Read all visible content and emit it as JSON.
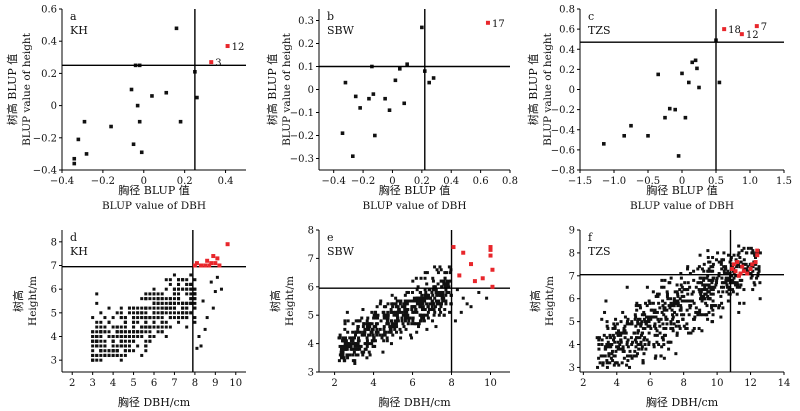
{
  "chart_data": [
    {
      "id": "a",
      "type": "scatter",
      "letter": "a",
      "site": "KH",
      "xlabel_cn": "胸径 BLUP 值",
      "xlabel_en": "BLUP value of DBH",
      "ylabel_cn": "树高 BLUP 值",
      "ylabel_en": "BLUP value of height",
      "xlim": [
        -0.4,
        0.5
      ],
      "ylim": [
        -0.4,
        0.6
      ],
      "xticks": [
        -0.4,
        -0.2,
        0,
        0.2,
        0.4
      ],
      "xtick_labels": [
        "−0.4",
        "−0.2",
        "0",
        "0.2",
        "0.4"
      ],
      "yticks": [
        -0.4,
        -0.2,
        0,
        0.2,
        0.4,
        0.6
      ],
      "ytick_labels": [
        "−0.4",
        "−0.2",
        "0",
        "0.2",
        "0.4",
        "0.6"
      ],
      "vline": 0.25,
      "hline": 0.25,
      "points": [
        [
          -0.34,
          -0.33
        ],
        [
          -0.34,
          -0.36
        ],
        [
          -0.32,
          -0.21
        ],
        [
          -0.29,
          -0.1
        ],
        [
          -0.28,
          -0.3
        ],
        [
          -0.16,
          -0.13
        ],
        [
          -0.06,
          0.1
        ],
        [
          -0.05,
          -0.24
        ],
        [
          -0.04,
          0.25
        ],
        [
          -0.03,
          0.0
        ],
        [
          -0.02,
          0.25
        ],
        [
          -0.02,
          -0.1
        ],
        [
          -0.01,
          -0.29
        ],
        [
          0.04,
          0.06
        ],
        [
          0.11,
          0.08
        ],
        [
          0.16,
          0.48
        ],
        [
          0.18,
          -0.1
        ],
        [
          0.25,
          0.21
        ],
        [
          0.26,
          0.05
        ]
      ],
      "highlighted": [
        [
          0.33,
          0.27
        ],
        [
          0.41,
          0.37
        ]
      ],
      "highlight_labels": [
        "3",
        "12"
      ]
    },
    {
      "id": "b",
      "type": "scatter",
      "letter": "b",
      "site": "SBW",
      "xlabel_cn": "胸径 BLUP 值",
      "xlabel_en": "BLUP value of DBH",
      "ylabel_cn": "树高 BLUP 值",
      "ylabel_en": "BLUP value of height",
      "xlim": [
        -0.5,
        0.8
      ],
      "ylim": [
        -0.35,
        0.35
      ],
      "xticks": [
        -0.4,
        -0.2,
        0,
        0.2,
        0.4,
        0.6,
        0.8
      ],
      "xtick_labels": [
        "−0.4",
        "−0.2",
        "0",
        "0.2",
        "0.4",
        "0.6",
        "0.8"
      ],
      "yticks": [
        -0.3,
        -0.2,
        -0.1,
        0,
        0.1,
        0.2,
        0.3
      ],
      "ytick_labels": [
        "−0.3",
        "−0.2",
        "−0.1",
        "0",
        "0.1",
        "0.2",
        "0.3"
      ],
      "vline": 0.22,
      "hline": 0.1,
      "points": [
        [
          -0.34,
          -0.19
        ],
        [
          -0.32,
          0.03
        ],
        [
          -0.27,
          -0.29
        ],
        [
          -0.25,
          -0.03
        ],
        [
          -0.22,
          -0.08
        ],
        [
          -0.16,
          -0.04
        ],
        [
          -0.14,
          0.1
        ],
        [
          -0.13,
          -0.02
        ],
        [
          -0.12,
          -0.2
        ],
        [
          -0.05,
          -0.04
        ],
        [
          -0.02,
          -0.09
        ],
        [
          0.02,
          0.04
        ],
        [
          0.05,
          0.09
        ],
        [
          0.08,
          -0.06
        ],
        [
          0.1,
          0.11
        ],
        [
          0.2,
          0.27
        ],
        [
          0.22,
          0.08
        ],
        [
          0.25,
          0.03
        ],
        [
          0.28,
          0.05
        ]
      ],
      "highlighted": [
        [
          0.65,
          0.29
        ]
      ],
      "highlight_labels": [
        "17"
      ]
    },
    {
      "id": "c",
      "type": "scatter",
      "letter": "c",
      "site": "TZS",
      "xlabel_cn": "胸径 BLUP 值",
      "xlabel_en": "BLUP value of DBH",
      "ylabel_cn": "树高 BLUP 值",
      "ylabel_en": "BLUP value of height",
      "xlim": [
        -1.5,
        1.5
      ],
      "ylim": [
        -0.8,
        0.8
      ],
      "xticks": [
        -1.5,
        -1.0,
        -0.5,
        0,
        0.5,
        1.0,
        1.5
      ],
      "xtick_labels": [
        "−1.5",
        "−1.0",
        "−0.5",
        "0",
        "0.5",
        "1.0",
        "1.5"
      ],
      "yticks": [
        -0.8,
        -0.6,
        -0.4,
        -0.2,
        0,
        0.2,
        0.4,
        0.6,
        0.8
      ],
      "ytick_labels": [
        "−0.8",
        "−0.6",
        "−0.4",
        "−0.2",
        "0",
        "0.2",
        "0.4",
        "0.6",
        "0.8"
      ],
      "vline": 0.5,
      "hline": 0.47,
      "points": [
        [
          -1.15,
          -0.54
        ],
        [
          -0.85,
          -0.46
        ],
        [
          -0.75,
          -0.36
        ],
        [
          -0.5,
          -0.46
        ],
        [
          -0.35,
          0.15
        ],
        [
          -0.25,
          -0.28
        ],
        [
          -0.18,
          -0.19
        ],
        [
          -0.1,
          -0.2
        ],
        [
          -0.05,
          -0.66
        ],
        [
          0.0,
          0.16
        ],
        [
          0.05,
          -0.28
        ],
        [
          0.1,
          0.07
        ],
        [
          0.15,
          0.27
        ],
        [
          0.2,
          0.29
        ],
        [
          0.22,
          0.21
        ],
        [
          0.25,
          0.02
        ],
        [
          0.5,
          0.49
        ],
        [
          0.55,
          0.07
        ]
      ],
      "highlighted": [
        [
          0.62,
          0.6
        ],
        [
          0.88,
          0.55
        ],
        [
          1.1,
          0.63
        ]
      ],
      "highlight_labels": [
        "18",
        "12",
        "7"
      ]
    },
    {
      "id": "d",
      "type": "scatter",
      "letter": "d",
      "site": "KH",
      "xlabel": "胸径 DBH/cm",
      "ylabel_cn": "树高",
      "ylabel_en": "Height/m",
      "xlim": [
        1.5,
        10.5
      ],
      "ylim": [
        2.5,
        8.5
      ],
      "xticks": [
        2,
        3,
        4,
        5,
        6,
        7,
        8,
        9,
        10
      ],
      "xtick_labels": [
        "2",
        "3",
        "4",
        "5",
        "6",
        "7",
        "8",
        "9",
        "10"
      ],
      "yticks": [
        3,
        4,
        5,
        6,
        7,
        8
      ],
      "ytick_labels": [
        "3",
        "4",
        "5",
        "6",
        "7",
        "8"
      ],
      "vline": 7.9,
      "hline": 6.95,
      "cloud": {
        "n": 420,
        "xmin": 2.9,
        "xmax": 8.1,
        "ymin": 3.0,
        "ymax": 6.9,
        "slope": 0.45,
        "xc": 5.0,
        "yc": 4.4,
        "sd": 0.6,
        "seed": 11,
        "xstep": 0.2,
        "ystep": 0.2
      },
      "extra_points": [
        [
          8.1,
          3.5
        ],
        [
          8.3,
          3.6
        ],
        [
          8.2,
          4.0
        ],
        [
          8.5,
          4.3
        ],
        [
          8.6,
          4.8
        ],
        [
          8.4,
          5.5
        ],
        [
          9.0,
          5.9
        ],
        [
          8.8,
          6.3
        ],
        [
          9.3,
          6.0
        ],
        [
          9.1,
          6.5
        ],
        [
          8.9,
          5.2
        ]
      ],
      "highlighted": [
        [
          8.0,
          7.0
        ],
        [
          8.1,
          7.1
        ],
        [
          8.3,
          7.0
        ],
        [
          8.5,
          7.0
        ],
        [
          8.6,
          7.2
        ],
        [
          8.7,
          7.0
        ],
        [
          8.8,
          7.1
        ],
        [
          8.9,
          7.4
        ],
        [
          9.0,
          7.1
        ],
        [
          9.1,
          7.3
        ],
        [
          9.2,
          7.0
        ],
        [
          9.6,
          7.9
        ]
      ]
    },
    {
      "id": "e",
      "type": "scatter",
      "letter": "e",
      "site": "SBW",
      "xlabel": "胸径 DBH/cm",
      "ylabel_cn": "树高",
      "ylabel_en": "Height/m",
      "xlim": [
        1.2,
        11.0
      ],
      "ylim": [
        3.0,
        8.0
      ],
      "xticks": [
        2,
        4,
        6,
        8,
        10
      ],
      "xtick_labels": [
        "2",
        "4",
        "6",
        "8",
        "10"
      ],
      "yticks": [
        3,
        4,
        5,
        6,
        7,
        8
      ],
      "ytick_labels": [
        "3",
        "4",
        "5",
        "6",
        "7",
        "8"
      ],
      "vline": 8.0,
      "hline": 5.95,
      "cloud": {
        "n": 520,
        "xmin": 2.2,
        "xmax": 8.0,
        "ymin": 3.3,
        "ymax": 6.9,
        "slope": 0.38,
        "xc": 4.0,
        "yc": 4.5,
        "sd": 0.4,
        "seed": 23,
        "xstep": 0,
        "ystep": 0.1
      },
      "extra_points": [
        [
          8.2,
          4.8
        ],
        [
          8.5,
          5.1
        ],
        [
          8.6,
          5.6
        ],
        [
          9.0,
          5.3
        ],
        [
          9.4,
          5.8
        ],
        [
          8.3,
          5.9
        ],
        [
          8.8,
          5.4
        ],
        [
          9.8,
          5.6
        ]
      ],
      "highlighted": [
        [
          8.1,
          7.4
        ],
        [
          8.4,
          6.4
        ],
        [
          8.6,
          7.2
        ],
        [
          9.0,
          6.8
        ],
        [
          9.2,
          6.2
        ],
        [
          10.0,
          7.4
        ],
        [
          10.0,
          7.3
        ],
        [
          10.0,
          7.1
        ],
        [
          10.1,
          6.6
        ],
        [
          10.1,
          6.0
        ],
        [
          9.6,
          6.3
        ]
      ]
    },
    {
      "id": "f",
      "type": "scatter",
      "letter": "f",
      "site": "TZS",
      "xlabel": "胸径 DBH/cm",
      "ylabel_cn": "树高",
      "ylabel_en": "Height/m",
      "xlim": [
        1.8,
        14.0
      ],
      "ylim": [
        2.8,
        9.0
      ],
      "xticks": [
        2,
        4,
        6,
        8,
        10,
        12,
        14
      ],
      "xtick_labels": [
        "2",
        "4",
        "6",
        "8",
        "10",
        "12",
        "14"
      ],
      "yticks": [
        3,
        4,
        5,
        6,
        7,
        8,
        9
      ],
      "ytick_labels": [
        "3",
        "4",
        "5",
        "6",
        "7",
        "8",
        "9"
      ],
      "vline": 10.8,
      "hline": 7.05,
      "cloud": {
        "n": 650,
        "xmin": 2.8,
        "xmax": 12.6,
        "ymin": 3.0,
        "ymax": 8.3,
        "slope": 0.45,
        "xc": 7.0,
        "yc": 5.3,
        "sd": 0.75,
        "seed": 37,
        "xstep": 0,
        "ystep": 0.1
      },
      "extra_points": [],
      "highlighted": [
        [
          10.9,
          7.3
        ],
        [
          11.0,
          7.5
        ],
        [
          11.1,
          7.2
        ],
        [
          11.2,
          7.6
        ],
        [
          11.4,
          7.1
        ],
        [
          11.5,
          7.4
        ],
        [
          11.6,
          7.2
        ],
        [
          12.0,
          7.3
        ],
        [
          12.1,
          7.5
        ],
        [
          12.3,
          7.6
        ],
        [
          12.4,
          7.9
        ],
        [
          12.4,
          8.1
        ],
        [
          11.8,
          7.1
        ],
        [
          11.3,
          7.0
        ]
      ]
    }
  ],
  "colors": {
    "points": "#111111",
    "highlight": "#e8262b",
    "lines": "#000000",
    "axis": "#000000"
  }
}
